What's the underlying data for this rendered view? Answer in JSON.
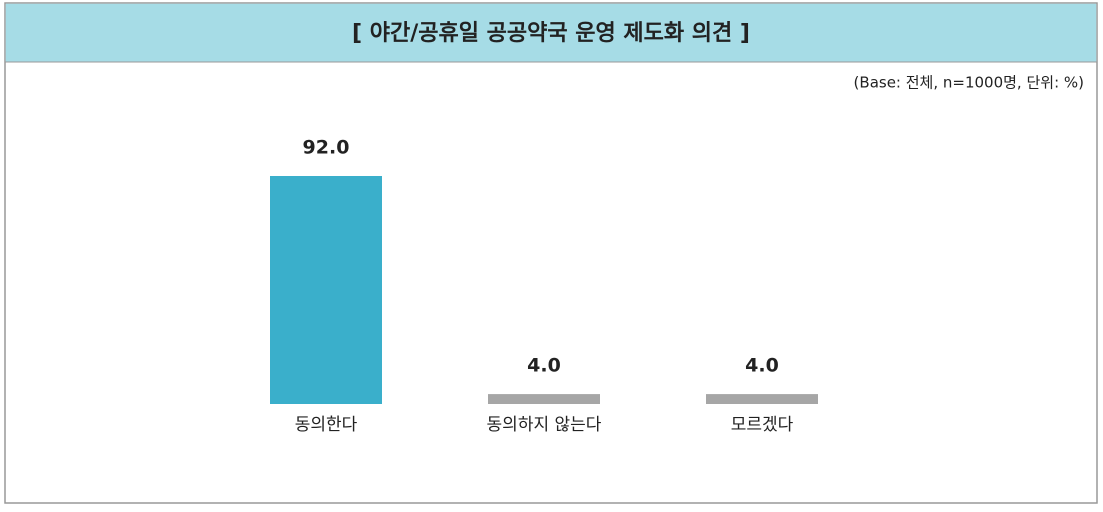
{
  "chart_data": {
    "type": "bar",
    "title": "[ 야간/공휴일 공공약국 운영 제도화 의견 ]",
    "subtitle": "(Base: 전체, n=1000명, 단위: %)",
    "categories": [
      "동의한다",
      "동의하지 않는다",
      "모르겠다"
    ],
    "values": [
      92.0,
      4.0,
      4.0
    ],
    "value_labels": [
      "92.0",
      "4.0",
      "4.0"
    ],
    "colors": [
      "#3aafcb",
      "#a6a6a6",
      "#a6a6a6"
    ]
  }
}
